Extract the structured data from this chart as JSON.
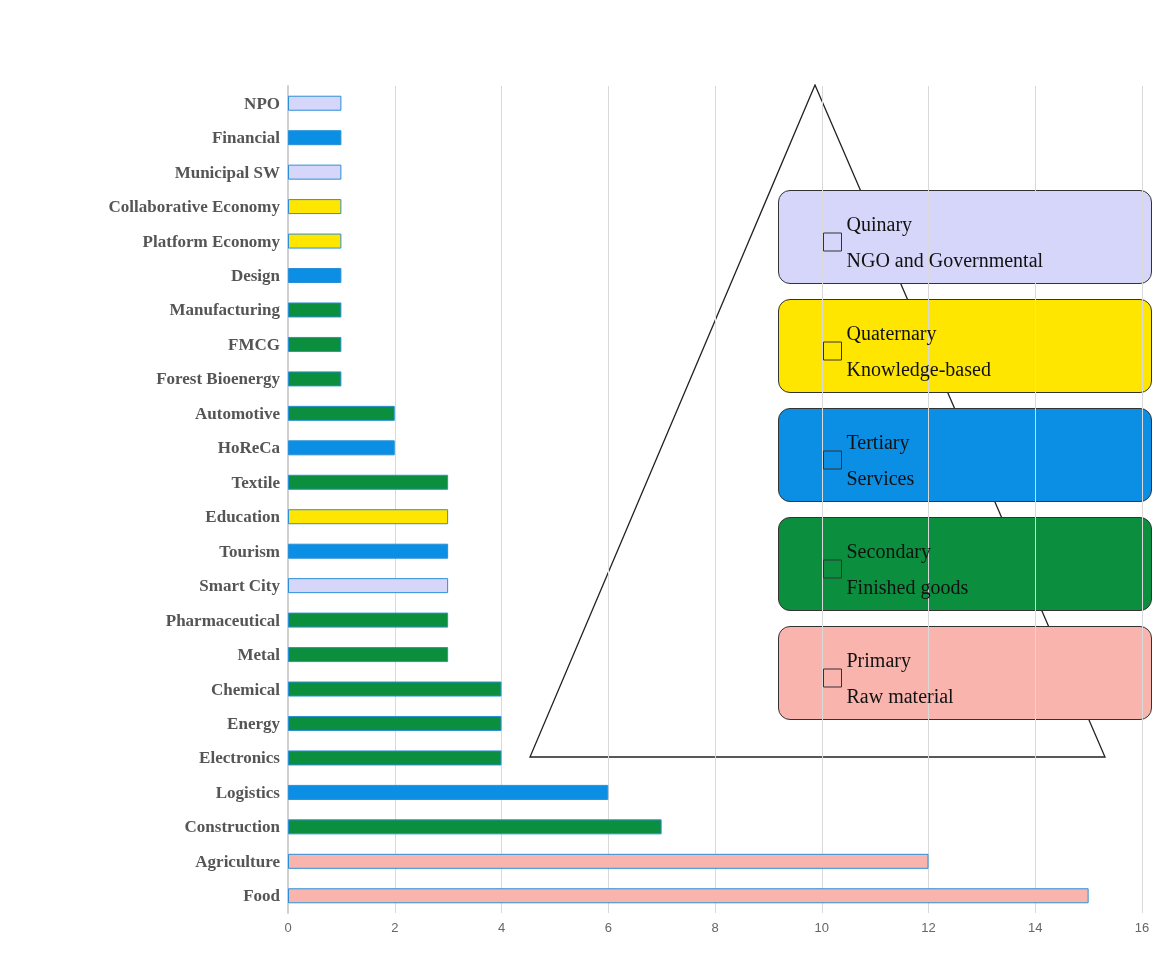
{
  "chart_data": {
    "type": "bar",
    "orientation": "horizontal",
    "stacked": true,
    "categories": [
      "NPO",
      "Financial",
      "Municipal SW",
      "Collaborative Economy",
      "Platform Economy",
      "Design",
      "Manufacturing",
      "FMCG",
      "Forest Bioenergy",
      "Automotive",
      "HoReCa",
      "Textile",
      "Education",
      "Tourism",
      "Smart City",
      "Pharmaceutical",
      "Metal",
      "Chemical",
      "Energy",
      "Electronics",
      "Logistics",
      "Construction",
      "Agriculture",
      "Food"
    ],
    "series": [
      {
        "name": "Quinary\nNGO and Governmental",
        "color": "#d6d6fa",
        "values": [
          1,
          null,
          1,
          null,
          null,
          null,
          null,
          null,
          null,
          null,
          null,
          null,
          null,
          null,
          3,
          null,
          null,
          null,
          null,
          null,
          null,
          null,
          null,
          null
        ]
      },
      {
        "name": "Quaternary\nKnowledge-based",
        "color": "#ffe600",
        "values": [
          null,
          null,
          null,
          1,
          1,
          null,
          null,
          null,
          null,
          null,
          null,
          null,
          3,
          null,
          null,
          null,
          null,
          null,
          null,
          null,
          null,
          null,
          null,
          null
        ]
      },
      {
        "name": "Tertiary\nServices",
        "color": "#0a8fe4",
        "values": [
          null,
          1,
          null,
          null,
          null,
          1,
          null,
          null,
          null,
          null,
          2,
          null,
          null,
          3,
          null,
          null,
          null,
          null,
          null,
          null,
          6,
          null,
          null,
          null
        ]
      },
      {
        "name": "Secondary\nFinished goods",
        "color": "#0b8f3e",
        "values": [
          null,
          null,
          null,
          null,
          null,
          null,
          1,
          1,
          1,
          2,
          null,
          3,
          null,
          null,
          null,
          3,
          3,
          4,
          4,
          4,
          null,
          7,
          null,
          null
        ]
      },
      {
        "name": "Primary\nRaw material",
        "color": "#fab4ae",
        "values": [
          null,
          null,
          null,
          null,
          null,
          null,
          null,
          null,
          null,
          null,
          null,
          null,
          null,
          null,
          null,
          null,
          null,
          null,
          null,
          null,
          null,
          null,
          12,
          15
        ]
      }
    ],
    "xlim": [
      0,
      16
    ],
    "xticks": [
      0,
      2,
      4,
      6,
      8,
      10,
      12,
      14,
      16
    ],
    "grid": "x",
    "legend": "right"
  }
}
